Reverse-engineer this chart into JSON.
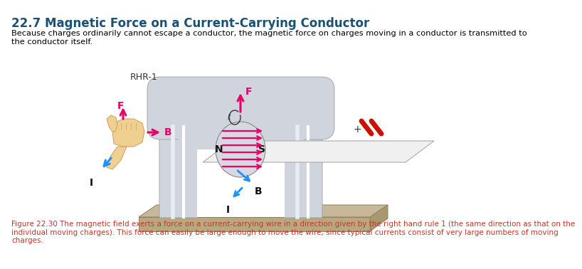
{
  "title": "22.7 Magnetic Force on a Current-Carrying Conductor",
  "subtitle": "Because charges ordinarily cannot escape a conductor, the magnetic force on charges moving in a conductor is transmitted to\nthe conductor itself.",
  "caption": "Figure 22.30 The magnetic field exerts a force on a current-carrying wire in a direction given by the right hand rule 1 (the same direction as that on the\nindividual moving charges). This force can easily be large enough to move the wire, since typical currents consist of very large numbers of moving\ncharges.",
  "title_color": "#1a5276",
  "caption_color": "#c0392b",
  "body_color": "#000000",
  "bg_color": "#ffffff",
  "pipe_color_light": "#d0d4dc",
  "pipe_color_mid": "#c0c4cc",
  "pipe_edge": "#909090",
  "base_color_top": "#c8b89a",
  "base_color_front": "#b8a880",
  "base_edge": "#908060",
  "arrow_F_color": "#e8006a",
  "arrow_B_color": "#e8006a",
  "arrow_I_color": "#1e90ff",
  "hand_color": "#f0d090",
  "hand_edge": "#c8a060",
  "plate_color": "#f0f0f0",
  "plate_edge": "#aaaaaa",
  "red_stripe_color": "#cc1100",
  "rhr_label": "RHR-1",
  "label_N": "N",
  "label_S": "S",
  "label_F": "F",
  "label_B": "B",
  "label_I": "I"
}
